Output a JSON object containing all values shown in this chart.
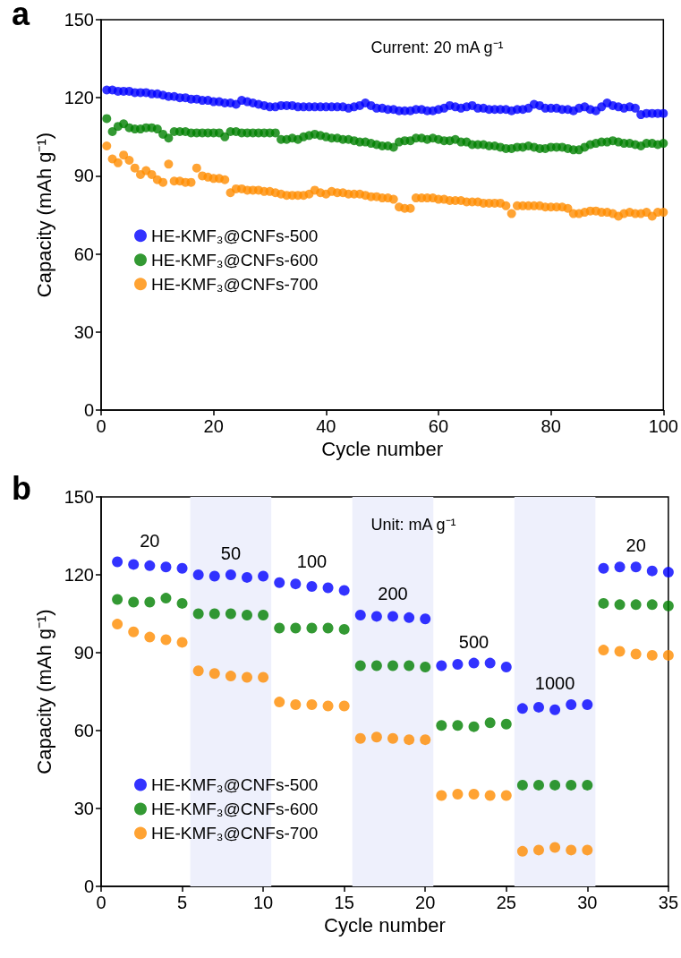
{
  "chart_data": [
    {
      "type": "scatter",
      "title": "a",
      "xlabel": "Cycle number",
      "ylabel": "Capacity (mAh g⁻¹)",
      "annotations": [
        "Current: 20 mA g⁻¹"
      ],
      "x": [
        1,
        2,
        3,
        4,
        5,
        6,
        7,
        8,
        9,
        10,
        11,
        12,
        13,
        14,
        15,
        16,
        17,
        18,
        19,
        20,
        21,
        22,
        23,
        24,
        25,
        26,
        27,
        28,
        29,
        30,
        31,
        32,
        33,
        34,
        35,
        36,
        37,
        38,
        39,
        40,
        41,
        42,
        43,
        44,
        45,
        46,
        47,
        48,
        49,
        50,
        51,
        52,
        53,
        54,
        55,
        56,
        57,
        58,
        59,
        60,
        61,
        62,
        63,
        64,
        65,
        66,
        67,
        68,
        69,
        70,
        71,
        72,
        73,
        74,
        75,
        76,
        77,
        78,
        79,
        80,
        81,
        82,
        83,
        84,
        85,
        86,
        87,
        88,
        89,
        90,
        91,
        92,
        93,
        94,
        95,
        96,
        97,
        98,
        99,
        100
      ],
      "series": [
        {
          "name": "HE-KMF₃@CNFs-500",
          "color": "#0000ff",
          "values": [
            123,
            123,
            122.5,
            122.5,
            122.5,
            122,
            122,
            122,
            121.5,
            121.5,
            121,
            120.5,
            120.5,
            120,
            120,
            119.5,
            119.5,
            119,
            119,
            118.5,
            118.5,
            118,
            118,
            117.5,
            119,
            118.5,
            118,
            117.5,
            117,
            116.5,
            116.5,
            117,
            117,
            117,
            116.5,
            116.5,
            116.5,
            116.5,
            116.5,
            116.5,
            116.5,
            116.5,
            116.5,
            116,
            116.5,
            117,
            118,
            117,
            116,
            116,
            115.5,
            115.5,
            115,
            115,
            115,
            115.5,
            115.5,
            115,
            115,
            115.5,
            116,
            117,
            116.5,
            116,
            116.5,
            117,
            116,
            116,
            115.5,
            115.5,
            115.5,
            115.5,
            115,
            115.5,
            115.5,
            116,
            117.5,
            117,
            116,
            116,
            116,
            115.5,
            115.5,
            115,
            116,
            116.5,
            115.5,
            115,
            116.5,
            118,
            117,
            116.5,
            116,
            116.5,
            116,
            113.5,
            114,
            114,
            114,
            114
          ]
        },
        {
          "name": "HE-KMF₃@CNFs-600",
          "color": "#008000",
          "values": [
            112,
            107,
            109,
            110,
            108.5,
            108,
            108,
            108.5,
            108.5,
            108,
            106,
            104.5,
            107,
            107,
            107,
            106.5,
            106.5,
            106.5,
            106.5,
            106.5,
            106.5,
            105,
            107,
            107,
            106.5,
            106.5,
            106.5,
            106.5,
            106.5,
            106.5,
            106.5,
            104,
            104,
            104.5,
            104,
            105,
            105.5,
            106,
            105.5,
            105,
            104.5,
            104.5,
            104,
            104,
            103.5,
            103,
            103,
            102.5,
            102,
            101.5,
            101.5,
            101,
            103,
            103.5,
            103.5,
            104.5,
            104.5,
            104,
            104.5,
            104,
            103.5,
            103.5,
            104,
            103,
            103,
            102,
            102,
            102,
            101.5,
            101.5,
            101,
            100.5,
            100.5,
            101,
            101,
            101.5,
            101,
            100.5,
            100.5,
            101,
            101,
            101,
            100.5,
            100,
            100,
            101,
            102,
            102.5,
            103,
            103,
            103.5,
            103,
            102.5,
            102.5,
            102,
            101.5,
            102.5,
            102.5,
            102,
            102.5
          ]
        },
        {
          "name": "HE-KMF₃@CNFs-700",
          "color": "#ff8c00",
          "values": [
            101.5,
            96.5,
            95,
            98,
            96,
            93,
            90.5,
            92,
            90.5,
            88.5,
            87.5,
            94.5,
            88,
            88,
            87.5,
            87.5,
            93,
            90,
            89.5,
            89,
            89,
            88.5,
            83.5,
            85,
            85,
            84.5,
            84.5,
            84.5,
            84,
            84,
            83.5,
            83,
            82.5,
            82.5,
            82.5,
            82.5,
            83,
            84.5,
            83.5,
            83,
            84,
            83.5,
            83.5,
            83,
            83,
            83,
            82.5,
            82,
            82,
            81.5,
            81.5,
            81,
            78,
            77.5,
            77.5,
            81.5,
            81.5,
            81.5,
            81.5,
            81,
            81,
            80.5,
            80.5,
            80.5,
            80,
            80,
            80,
            79.5,
            79.5,
            79.5,
            79.5,
            78.5,
            75.5,
            78.5,
            78.5,
            78.5,
            78.5,
            78.5,
            78,
            78,
            78,
            78,
            77.5,
            75.5,
            75.5,
            76,
            76.5,
            76.5,
            76,
            76,
            75.5,
            74.5,
            75.5,
            76,
            75.5,
            75.5,
            76,
            74.5,
            76,
            76
          ]
        }
      ],
      "xlim": [
        0,
        100
      ],
      "xticks": [
        0,
        20,
        40,
        60,
        80,
        100
      ],
      "ylim": [
        0,
        150
      ],
      "yticks": [
        0,
        30,
        60,
        90,
        120,
        150
      ],
      "marker": "circle",
      "legend": "left",
      "grid": false
    },
    {
      "type": "scatter",
      "title": "b",
      "xlabel": "Cycle number",
      "ylabel": "Capacity (mAh g⁻¹)",
      "annotations": [
        "Unit: mA g⁻¹",
        "20",
        "50",
        "100",
        "200",
        "500",
        "1000",
        "20"
      ],
      "x": [
        1,
        2,
        3,
        4,
        5,
        6,
        7,
        8,
        9,
        10,
        11,
        12,
        13,
        14,
        15,
        16,
        17,
        18,
        19,
        20,
        21,
        22,
        23,
        24,
        25,
        26,
        27,
        28,
        29,
        30,
        31,
        32,
        33,
        34,
        35
      ],
      "series": [
        {
          "name": "HE-KMF₃@CNFs-500",
          "color": "#0000ff",
          "values": [
            125,
            124,
            123.5,
            123,
            122.5,
            120,
            119.5,
            120,
            119,
            119.5,
            117,
            116.5,
            115.5,
            115,
            114,
            104.5,
            104,
            104,
            103.5,
            103,
            85,
            85.5,
            86,
            86,
            84.5,
            68.5,
            69,
            68,
            70,
            70,
            122.5,
            123,
            123,
            121.5,
            121
          ]
        },
        {
          "name": "HE-KMF₃@CNFs-600",
          "color": "#008000",
          "values": [
            110.5,
            109.5,
            109.5,
            111,
            109,
            105,
            105,
            105,
            104.5,
            104.5,
            99.5,
            99.5,
            99.5,
            99.5,
            99,
            85,
            85,
            85,
            85,
            84.5,
            62,
            62,
            61.5,
            63,
            62.5,
            39,
            39,
            39,
            39,
            39,
            109,
            108.5,
            108.5,
            108.5,
            108
          ]
        },
        {
          "name": "HE-KMF₃@CNFs-700",
          "color": "#ff8c00",
          "values": [
            101,
            98,
            96,
            95,
            94,
            83,
            82,
            81,
            80.5,
            80.5,
            71,
            70,
            70,
            69.5,
            69.5,
            57,
            57.5,
            57,
            56.5,
            56.5,
            35,
            35.5,
            35.5,
            35,
            35,
            13.5,
            14,
            15,
            14,
            14,
            91,
            90.5,
            89.5,
            89,
            89
          ]
        }
      ],
      "bands": [
        {
          "axis": "x",
          "from": 5.5,
          "to": 10.5,
          "color": "#eef0fc"
        },
        {
          "axis": "x",
          "from": 15.5,
          "to": 20.5,
          "color": "#eef0fc"
        },
        {
          "axis": "x",
          "from": 25.5,
          "to": 30.5,
          "color": "#eef0fc"
        }
      ],
      "xlim": [
        0,
        35
      ],
      "xticks": [
        0,
        5,
        10,
        15,
        20,
        25,
        30,
        35
      ],
      "ylim": [
        0,
        150
      ],
      "yticks": [
        0,
        30,
        60,
        90,
        120,
        150
      ],
      "marker": "circle",
      "legend": "bottom left",
      "grid": false
    }
  ]
}
